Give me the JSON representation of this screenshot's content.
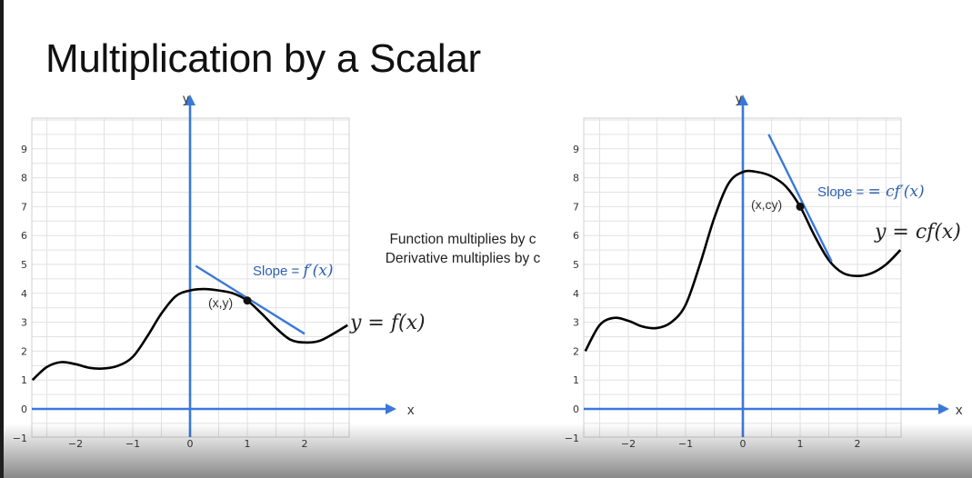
{
  "slide": {
    "title": "Multiplication by a Scalar",
    "note_line1": "Function multiplies by c",
    "note_line2": "Derivative multiplies by c"
  },
  "colors": {
    "axis": "#3a78d8",
    "tangent": "#3a78d8",
    "curve": "#000000",
    "grid": "#e2e2e2",
    "label_blue": "#2b5fb0"
  },
  "chart_data": [
    {
      "type": "line",
      "title": "",
      "xlabel": "x",
      "ylabel": "y",
      "xlim": [
        -2.75,
        2.75
      ],
      "ylim": [
        -1,
        10
      ],
      "x_ticks": [
        "−2",
        "−1",
        "0",
        "1",
        "2"
      ],
      "y_ticks": [
        "−1",
        "0",
        "1",
        "2",
        "3",
        "4",
        "5",
        "6",
        "7",
        "8",
        "9"
      ],
      "grid": true,
      "series": [
        {
          "label": "y = f(x)",
          "x": [
            -2.75,
            -2.5,
            -2.25,
            -2.0,
            -1.75,
            -1.5,
            -1.25,
            -1.0,
            -0.75,
            -0.5,
            -0.25,
            0.0,
            0.25,
            0.5,
            0.75,
            1.0,
            1.25,
            1.5,
            1.75,
            2.0,
            2.25,
            2.5,
            2.75
          ],
          "y": [
            1.0,
            1.45,
            1.62,
            1.55,
            1.42,
            1.4,
            1.5,
            1.8,
            2.5,
            3.3,
            3.9,
            4.1,
            4.15,
            4.1,
            4.0,
            3.75,
            3.3,
            2.8,
            2.4,
            2.3,
            2.35,
            2.6,
            2.9
          ]
        }
      ],
      "tangent": {
        "label_prefix": "Slope = ",
        "label_math": "f′(x)",
        "x1": 0.1,
        "y1": 4.95,
        "x2": 2.0,
        "y2": 2.6
      },
      "point": {
        "label": "(x,y)",
        "x": 1.0,
        "y": 3.75
      },
      "curve_label": "y = f(x)"
    },
    {
      "type": "line",
      "title": "",
      "xlabel": "x",
      "ylabel": "y",
      "xlim": [
        -2.75,
        2.75
      ],
      "ylim": [
        -1,
        10
      ],
      "x_ticks": [
        "−2",
        "−1",
        "0",
        "1",
        "2"
      ],
      "y_ticks": [
        "−1",
        "0",
        "1",
        "2",
        "3",
        "4",
        "5",
        "6",
        "7",
        "8",
        "9"
      ],
      "grid": true,
      "series": [
        {
          "label": "y = cf(x)",
          "x": [
            -2.75,
            -2.5,
            -2.25,
            -2.0,
            -1.75,
            -1.5,
            -1.25,
            -1.0,
            -0.75,
            -0.5,
            -0.25,
            0.0,
            0.25,
            0.5,
            0.75,
            1.0,
            1.25,
            1.5,
            1.75,
            2.0,
            2.25,
            2.5,
            2.75
          ],
          "y": [
            2.0,
            2.9,
            3.15,
            3.05,
            2.85,
            2.8,
            3.0,
            3.6,
            5.0,
            6.6,
            7.8,
            8.2,
            8.2,
            8.05,
            7.7,
            7.0,
            6.0,
            5.15,
            4.7,
            4.6,
            4.7,
            5.0,
            5.5
          ]
        }
      ],
      "tangent": {
        "label_prefix": "Slope = ",
        "label_math": "= cf′(x)",
        "x1": 0.45,
        "y1": 9.5,
        "x2": 1.55,
        "y2": 5.1
      },
      "point": {
        "label": "(x,cy)",
        "x": 1.0,
        "y": 7.0
      },
      "curve_label": "y = cf(x)"
    }
  ]
}
